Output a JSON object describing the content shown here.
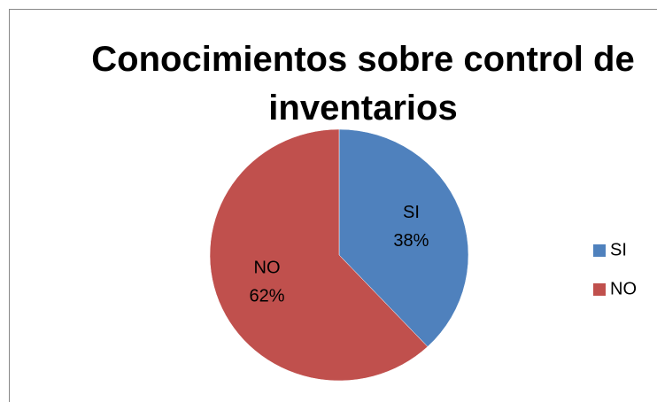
{
  "chart_data": {
    "type": "pie",
    "title": "Conocimientos sobre control de inventarios",
    "categories": [
      "SI",
      "NO"
    ],
    "values": [
      38,
      62
    ],
    "value_labels": [
      "38%",
      "62%"
    ],
    "colors": [
      "#4f81bd",
      "#c0504d"
    ],
    "legend": "right"
  }
}
